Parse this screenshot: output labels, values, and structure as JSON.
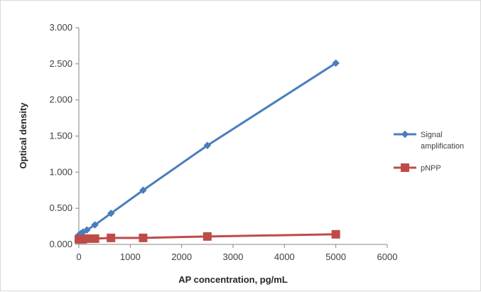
{
  "chart_data": {
    "type": "scatter",
    "title": "",
    "xlabel": "AP concentration, pg/mL",
    "ylabel": "Optical density",
    "xlim": [
      0,
      6000
    ],
    "ylim": [
      0,
      3.0
    ],
    "x_ticks": [
      "0",
      "1000",
      "2000",
      "3000",
      "4000",
      "5000",
      "6000"
    ],
    "y_ticks": [
      "0.000",
      "0.500",
      "1.000",
      "1.500",
      "2.000",
      "2.500",
      "3.000"
    ],
    "grid": false,
    "legend_position": "right",
    "series": [
      {
        "name": "Signal amplification",
        "legend_lines": [
          "Signal",
          "amplification"
        ],
        "color": "#4a7ebb",
        "marker": "diamond",
        "x": [
          0,
          39,
          78,
          156,
          313,
          625,
          1250,
          2500,
          5000
        ],
        "y": [
          0.13,
          0.15,
          0.17,
          0.2,
          0.27,
          0.43,
          0.75,
          1.37,
          2.51
        ]
      },
      {
        "name": "pNPP",
        "legend_lines": [
          "pNPP"
        ],
        "color": "#be4b48",
        "marker": "square",
        "x": [
          0,
          39,
          78,
          156,
          313,
          625,
          1250,
          2500,
          5000
        ],
        "y": [
          0.07,
          0.07,
          0.07,
          0.08,
          0.08,
          0.09,
          0.09,
          0.11,
          0.14
        ]
      }
    ]
  }
}
